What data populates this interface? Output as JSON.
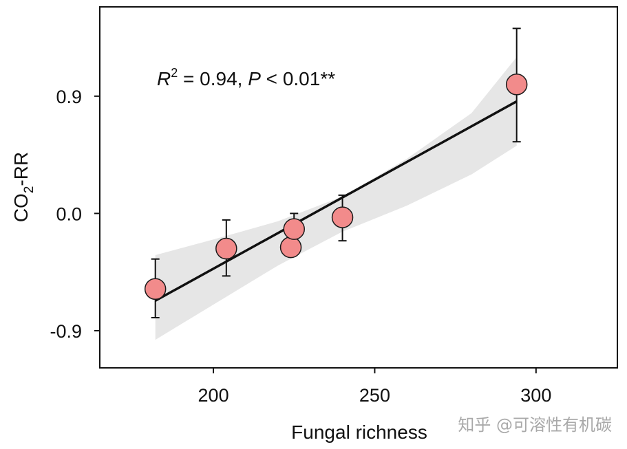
{
  "chart_data": {
    "type": "scatter",
    "xlabel": "Fungal richness",
    "ylabel_main": "CO",
    "ylabel_sub": "2",
    "ylabel_rest": "-RR",
    "xlim": [
      165,
      325
    ],
    "ylim": [
      -1.18,
      1.58
    ],
    "x_ticks": [
      200,
      250,
      300
    ],
    "x_tick_labels": [
      "200",
      "250",
      "300"
    ],
    "y_ticks": [
      -0.9,
      0.0,
      0.9
    ],
    "y_tick_labels": [
      "-0.9",
      "0.0",
      "0.9"
    ],
    "grid": false,
    "annotation": {
      "r_letter": "R",
      "r_exp": "2",
      "r_value": " = 0.94, ",
      "p_letter": "P",
      "p_value": " < 0.01**"
    },
    "points": [
      {
        "x": 182,
        "y": -0.58,
        "err_low": -0.8,
        "err_high": -0.35
      },
      {
        "x": 204,
        "y": -0.27,
        "err_low": -0.48,
        "err_high": -0.05
      },
      {
        "x": 224,
        "y": -0.26,
        "err_low": -0.26,
        "err_high": -0.26
      },
      {
        "x": 225,
        "y": -0.12,
        "err_low": -0.22,
        "err_high": 0.0
      },
      {
        "x": 240,
        "y": -0.03,
        "err_low": -0.21,
        "err_high": 0.14
      },
      {
        "x": 294,
        "y": 0.99,
        "err_low": 0.55,
        "err_high": 1.42
      }
    ],
    "fit_line": {
      "x": [
        182,
        294
      ],
      "y": [
        -0.67,
        0.86
      ]
    },
    "confidence_band": {
      "x": [
        182,
        200,
        220,
        240,
        260,
        280,
        294
      ],
      "upper": [
        -0.32,
        -0.2,
        -0.06,
        0.13,
        0.42,
        0.77,
        1.2
      ],
      "lower": [
        -0.97,
        -0.7,
        -0.4,
        -0.14,
        0.06,
        0.3,
        0.52
      ]
    },
    "colors": {
      "point_fill": "#f28b8b",
      "point_stroke": "#1a1a1a",
      "line": "#111111",
      "band": "#e6e6e6",
      "errorbar": "#111111"
    }
  },
  "watermark": "知乎 @可溶性有机碳"
}
